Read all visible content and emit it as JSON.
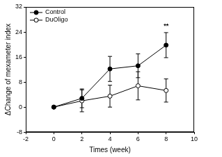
{
  "chart_data": {
    "type": "line",
    "x_label": "Times (week)",
    "y_label": "ΔChange of mexameter index",
    "x": [
      0,
      2,
      4,
      6,
      8
    ],
    "series": [
      {
        "name": "Control",
        "color": "#000000",
        "marker": "filled_circle",
        "values": [
          0,
          2.8,
          12.2,
          13.2,
          19.8
        ],
        "errors": [
          0,
          3,
          4,
          3.8,
          4
        ]
      },
      {
        "name": "DuOligo",
        "color": "#000000",
        "marker": "open_circle",
        "values": [
          0,
          2,
          3.5,
          6.8,
          5.3
        ],
        "errors": [
          0,
          3.5,
          3.5,
          4.5,
          3.7
        ]
      }
    ],
    "xlim": [
      -2,
      10
    ],
    "xticks": [
      -2,
      0,
      2,
      4,
      6,
      8,
      10
    ],
    "ylim": [
      -8,
      32
    ],
    "yticks": [
      -8,
      0,
      8,
      16,
      24,
      32
    ],
    "grid": false,
    "legend": "top-left",
    "annotations": [
      {
        "text": "**",
        "x": 8,
        "y": 25
      }
    ]
  }
}
